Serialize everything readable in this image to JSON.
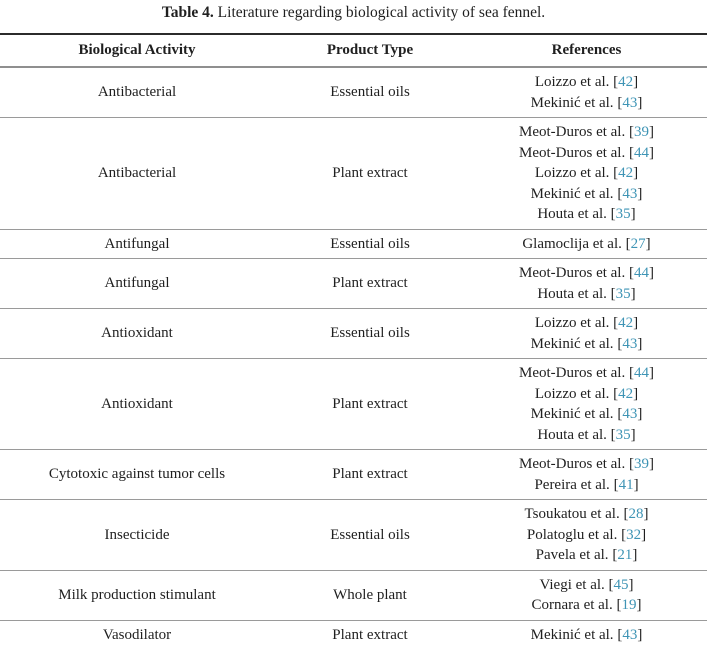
{
  "caption": {
    "label": "Table 4.",
    "text": " Literature regarding biological activity of sea fennel."
  },
  "columns": [
    "Biological Activity",
    "Product Type",
    "References"
  ],
  "rows": [
    {
      "activity": "Antibacterial",
      "product": "Essential oils",
      "references": [
        {
          "name": "Loizzo et al.",
          "num": "42"
        },
        {
          "name": "Mekinić et al.",
          "num": "43"
        }
      ]
    },
    {
      "activity": "Antibacterial",
      "product": "Plant extract",
      "references": [
        {
          "name": "Meot-Duros et al.",
          "num": "39"
        },
        {
          "name": "Meot-Duros et al.",
          "num": "44"
        },
        {
          "name": "Loizzo et al.",
          "num": "42"
        },
        {
          "name": "Mekinić et al.",
          "num": "43"
        },
        {
          "name": "Houta et al.",
          "num": "35"
        }
      ]
    },
    {
      "activity": "Antifungal",
      "product": "Essential oils",
      "references": [
        {
          "name": "Glamoclija et al.",
          "num": "27"
        }
      ]
    },
    {
      "activity": "Antifungal",
      "product": "Plant extract",
      "references": [
        {
          "name": "Meot-Duros et al.",
          "num": "44"
        },
        {
          "name": "Houta et al.",
          "num": "35"
        }
      ]
    },
    {
      "activity": "Antioxidant",
      "product": "Essential oils",
      "references": [
        {
          "name": "Loizzo et al.",
          "num": "42"
        },
        {
          "name": "Mekinić et al.",
          "num": "43"
        }
      ]
    },
    {
      "activity": "Antioxidant",
      "product": "Plant extract",
      "references": [
        {
          "name": "Meot-Duros et al.",
          "num": "44"
        },
        {
          "name": "Loizzo et al.",
          "num": "42"
        },
        {
          "name": "Mekinić et al.",
          "num": "43"
        },
        {
          "name": "Houta et al.",
          "num": "35"
        }
      ]
    },
    {
      "activity": "Cytotoxic against tumor cells",
      "product": "Plant extract",
      "references": [
        {
          "name": "Meot-Duros et al.",
          "num": "39"
        },
        {
          "name": "Pereira et al.",
          "num": "41"
        }
      ]
    },
    {
      "activity": "Insecticide",
      "product": "Essential oils",
      "references": [
        {
          "name": "Tsoukatou et al.",
          "num": "28"
        },
        {
          "name": "Polatoglu et al.",
          "num": "32"
        },
        {
          "name": "Pavela et al.",
          "num": "21"
        }
      ]
    },
    {
      "activity": "Milk production stimulant",
      "product": "Whole plant",
      "references": [
        {
          "name": "Viegi et al.",
          "num": "45"
        },
        {
          "name": "Cornara et al.",
          "num": "19"
        }
      ]
    },
    {
      "activity": "Vasodilator",
      "product": "Plant extract",
      "references": [
        {
          "name": "Mekinić et al.",
          "num": "43"
        }
      ]
    }
  ],
  "colors": {
    "citation_link": "#3e94b5",
    "text": "#1f1f1f",
    "rule_heavy": "#2b2b2b",
    "rule_light": "#9a9a9a"
  }
}
